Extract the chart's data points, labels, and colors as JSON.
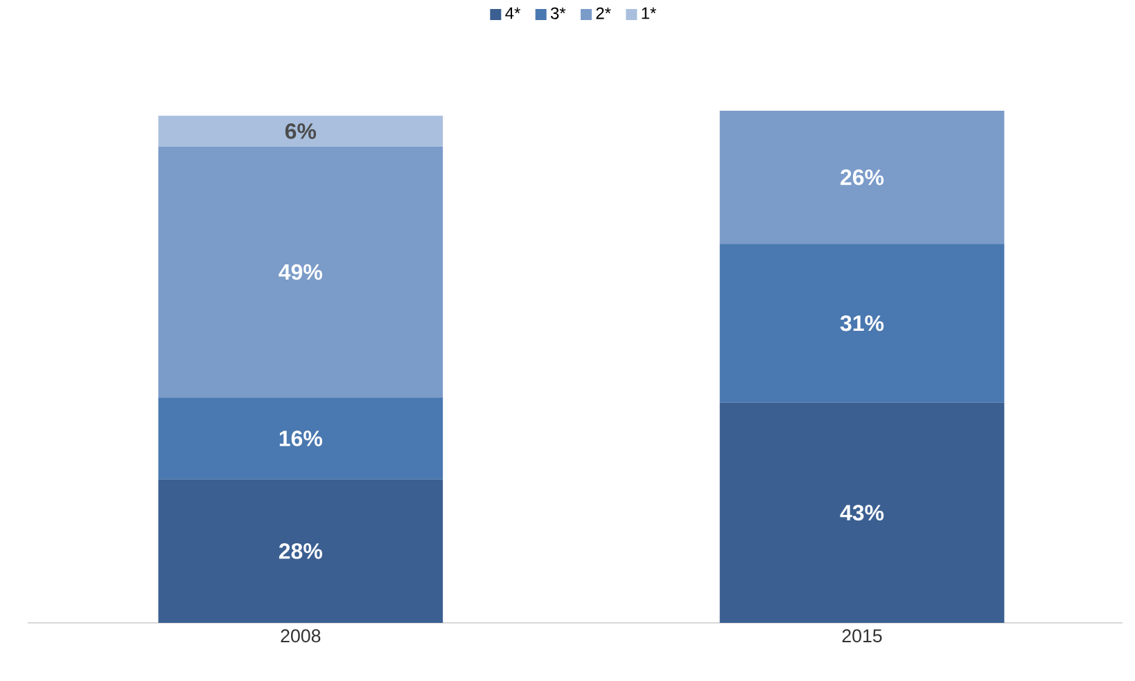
{
  "chart_data": {
    "type": "bar",
    "stacked": true,
    "categories": [
      "2008",
      "2015"
    ],
    "series": [
      {
        "name": "4*",
        "color": "#3b5f91",
        "values": [
          28,
          43
        ],
        "value_labels": [
          "28%",
          "43%"
        ]
      },
      {
        "name": "3*",
        "color": "#4a78b0",
        "values": [
          16,
          31
        ],
        "value_labels": [
          "16%",
          "31%"
        ]
      },
      {
        "name": "2*",
        "color": "#7b9bc9",
        "values": [
          49,
          26
        ],
        "value_labels": [
          "49%",
          "26%"
        ]
      },
      {
        "name": "1*",
        "color": "#a9bfdd",
        "values": [
          6,
          0
        ],
        "value_labels": [
          "6%",
          null
        ]
      }
    ],
    "legend": "top",
    "grid": false
  }
}
